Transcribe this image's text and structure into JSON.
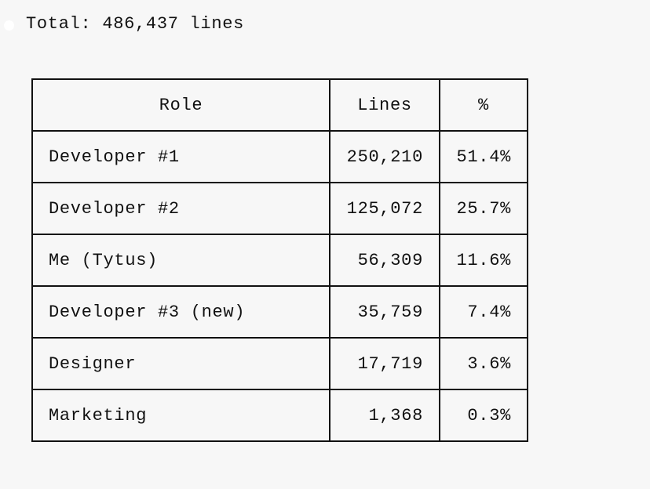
{
  "header": {
    "total": "Total: 486,437 lines"
  },
  "table": {
    "columns": [
      "Role",
      "Lines",
      "%"
    ],
    "rows": [
      [
        "Developer #1",
        "250,210",
        "51.4%"
      ],
      [
        "Developer #2",
        "125,072",
        "25.7%"
      ],
      [
        "Me (Tytus)",
        "56,309",
        "11.6%"
      ],
      [
        "Developer #3 (new)",
        "35,759",
        "7.4%"
      ],
      [
        "Designer",
        "17,719",
        "3.6%"
      ],
      [
        "Marketing",
        "1,368",
        "0.3%"
      ]
    ]
  }
}
